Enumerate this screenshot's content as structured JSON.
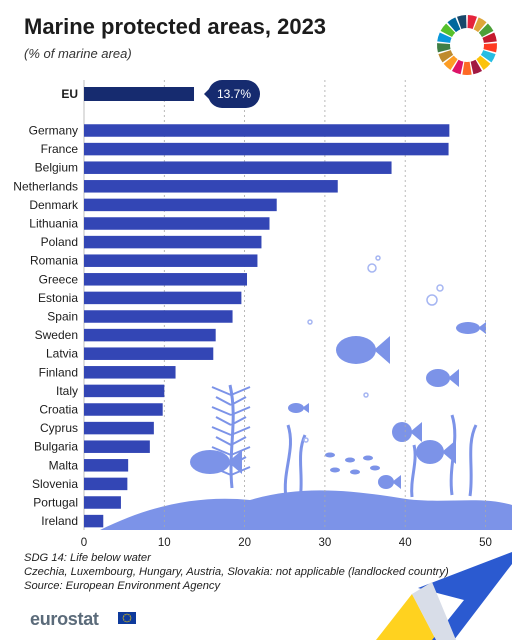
{
  "header": {
    "title": "Marine protected areas, 2023",
    "subtitle": "(% of marine area)"
  },
  "colors": {
    "bar": "#3346b5",
    "callout": "#162b6f",
    "decoration": "#7c93e8",
    "decoration_light": "#a6b6f2"
  },
  "chart_data": {
    "type": "bar",
    "orientation": "horizontal",
    "highlight": {
      "category": "EU",
      "value": 13.7,
      "label": "13.7%"
    },
    "categories": [
      "Germany",
      "France",
      "Belgium",
      "Netherlands",
      "Denmark",
      "Lithuania",
      "Poland",
      "Romania",
      "Greece",
      "Estonia",
      "Spain",
      "Sweden",
      "Latvia",
      "Finland",
      "Italy",
      "Croatia",
      "Cyprus",
      "Bulgaria",
      "Malta",
      "Slovenia",
      "Portugal",
      "Ireland"
    ],
    "values": [
      45.5,
      45.4,
      38.3,
      31.6,
      24.0,
      23.1,
      22.1,
      21.6,
      20.3,
      19.6,
      18.5,
      16.4,
      16.1,
      11.4,
      10.0,
      9.8,
      8.7,
      8.2,
      5.5,
      5.4,
      4.6,
      2.4
    ],
    "xlim": [
      0,
      53
    ],
    "xticks": [
      "0",
      "10",
      "20",
      "30",
      "40",
      "50"
    ],
    "grid": true,
    "xlabel": "",
    "ylabel": ""
  },
  "notes": {
    "line1": "SDG 14: Life below water",
    "line2": "Czechia, Luxembourg, Hungary, Austria, Slovakia: not applicable (landlocked country)",
    "line3": "Source: European Environment Agency"
  },
  "footer": {
    "brand": "eurostat",
    "flag_icon": "eu-flag-icon"
  }
}
